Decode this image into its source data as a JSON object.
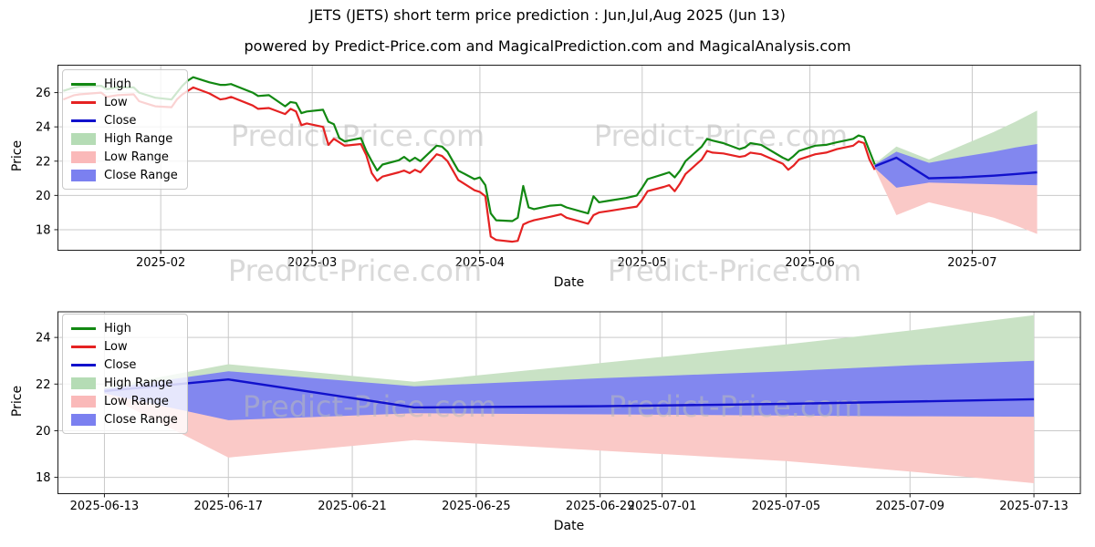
{
  "figure": {
    "title": "JETS (JETS) short term price prediction : Jun,Jul,Aug 2025 (Jun 13)",
    "subtitle": "powered by Predict-Price.com and MagicalPrediction.com and MagicalAnalysis.com",
    "watermark": "Predict-Price.com"
  },
  "axes": {
    "price_label": "Price",
    "date_label": "Date"
  },
  "colors": {
    "high_line": "#128812",
    "low_line": "#e52222",
    "close_line": "#1111cc",
    "high_band": "#c9e2c5",
    "low_band": "#fac9c7",
    "close_band": "#8287ef",
    "grid": "#c9c9c9",
    "spine": "#1c1c1c",
    "tick_text": "#000000"
  },
  "legend": {
    "items": [
      {
        "label": "High",
        "type": "line",
        "swatch_color": "#128812"
      },
      {
        "label": "Low",
        "type": "line",
        "swatch_color": "#e52222"
      },
      {
        "label": "Close",
        "type": "line",
        "swatch_color": "#1111cc"
      },
      {
        "label": "High Range",
        "type": "patch",
        "swatch_color": "#b5dcb5"
      },
      {
        "label": "Low Range",
        "type": "patch",
        "swatch_color": "#fab9b9"
      },
      {
        "label": "Close Range",
        "type": "patch",
        "swatch_color": "#7b80f0"
      }
    ]
  },
  "chart_data": {
    "type": "line",
    "title": "JETS (JETS) short term price prediction : Jun,Jul,Aug 2025 (Jun 13)",
    "history": {
      "dates": [
        "2025-01-14",
        "2025-01-16",
        "2025-01-17",
        "2025-01-21",
        "2025-01-22",
        "2025-01-24",
        "2025-01-27",
        "2025-01-28",
        "2025-01-29",
        "2025-01-31",
        "2025-02-03",
        "2025-02-04",
        "2025-02-05",
        "2025-02-06",
        "2025-02-07",
        "2025-02-10",
        "2025-02-12",
        "2025-02-13",
        "2025-02-14",
        "2025-02-18",
        "2025-02-19",
        "2025-02-21",
        "2025-02-24",
        "2025-02-25",
        "2025-02-26",
        "2025-02-27",
        "2025-02-28",
        "2025-03-03",
        "2025-03-04",
        "2025-03-05",
        "2025-03-06",
        "2025-03-07",
        "2025-03-10",
        "2025-03-11",
        "2025-03-12",
        "2025-03-13",
        "2025-03-14",
        "2025-03-17",
        "2025-03-18",
        "2025-03-19",
        "2025-03-20",
        "2025-03-21",
        "2025-03-24",
        "2025-03-25",
        "2025-03-26",
        "2025-03-27",
        "2025-03-28",
        "2025-03-31",
        "2025-04-01",
        "2025-04-02",
        "2025-04-03",
        "2025-04-04",
        "2025-04-07",
        "2025-04-08",
        "2025-04-09",
        "2025-04-10",
        "2025-04-11",
        "2025-04-14",
        "2025-04-16",
        "2025-04-17",
        "2025-04-21",
        "2025-04-22",
        "2025-04-23",
        "2025-04-25",
        "2025-04-28",
        "2025-04-30",
        "2025-05-01",
        "2025-05-02",
        "2025-05-05",
        "2025-05-06",
        "2025-05-07",
        "2025-05-08",
        "2025-05-09",
        "2025-05-12",
        "2025-05-13",
        "2025-05-14",
        "2025-05-16",
        "2025-05-19",
        "2025-05-20",
        "2025-05-21",
        "2025-05-23",
        "2025-05-27",
        "2025-05-28",
        "2025-05-29",
        "2025-05-30",
        "2025-06-02",
        "2025-06-04",
        "2025-06-06",
        "2025-06-09",
        "2025-06-10",
        "2025-06-11",
        "2025-06-12",
        "2025-06-13"
      ],
      "high": [
        26.1,
        26.3,
        26.35,
        26.4,
        26.2,
        26.3,
        26.3,
        26.0,
        25.9,
        25.7,
        25.6,
        26.0,
        26.4,
        26.7,
        26.9,
        26.6,
        26.45,
        26.45,
        26.5,
        26.0,
        25.8,
        25.85,
        25.2,
        25.45,
        25.4,
        24.8,
        24.9,
        25.0,
        24.3,
        24.15,
        23.35,
        23.15,
        23.35,
        22.6,
        22.0,
        21.45,
        21.8,
        22.05,
        22.25,
        22.0,
        22.2,
        22.0,
        22.9,
        22.85,
        22.55,
        22.0,
        21.45,
        20.95,
        21.05,
        20.6,
        18.95,
        18.55,
        18.5,
        18.7,
        20.55,
        19.3,
        19.2,
        19.4,
        19.45,
        19.3,
        18.95,
        19.95,
        19.6,
        19.7,
        19.85,
        20.0,
        20.45,
        20.95,
        21.25,
        21.35,
        21.05,
        21.45,
        22.0,
        22.85,
        23.3,
        23.2,
        23.05,
        22.7,
        22.8,
        23.05,
        22.95,
        22.2,
        22.05,
        22.3,
        22.6,
        22.9,
        22.95,
        23.1,
        23.3,
        23.5,
        23.4,
        22.6,
        21.8
      ],
      "low": [
        25.6,
        25.85,
        25.9,
        26.0,
        25.75,
        25.85,
        25.9,
        25.5,
        25.4,
        25.2,
        25.15,
        25.6,
        25.9,
        26.1,
        26.3,
        25.95,
        25.6,
        25.65,
        25.75,
        25.25,
        25.05,
        25.1,
        24.75,
        25.05,
        24.9,
        24.1,
        24.2,
        24.0,
        22.95,
        23.3,
        23.1,
        22.9,
        23.0,
        22.35,
        21.3,
        20.85,
        21.1,
        21.35,
        21.45,
        21.3,
        21.5,
        21.35,
        22.4,
        22.3,
        22.0,
        21.45,
        20.9,
        20.3,
        20.2,
        19.95,
        17.6,
        17.4,
        17.3,
        17.35,
        18.3,
        18.45,
        18.55,
        18.75,
        18.9,
        18.7,
        18.35,
        18.85,
        19.0,
        19.1,
        19.25,
        19.35,
        19.75,
        20.25,
        20.5,
        20.6,
        20.25,
        20.7,
        21.25,
        22.1,
        22.6,
        22.5,
        22.45,
        22.25,
        22.3,
        22.5,
        22.4,
        21.85,
        21.5,
        21.75,
        22.1,
        22.4,
        22.5,
        22.7,
        22.9,
        23.15,
        23.05,
        22.1,
        21.5
      ]
    },
    "prediction": {
      "dates": [
        "2025-06-13",
        "2025-06-17",
        "2025-06-23",
        "2025-06-29",
        "2025-07-05",
        "2025-07-09",
        "2025-07-13"
      ],
      "close": [
        21.7,
        22.2,
        21.0,
        21.05,
        21.15,
        21.25,
        21.35
      ],
      "close_upper": [
        21.8,
        22.55,
        21.9,
        22.25,
        22.55,
        22.8,
        23.0
      ],
      "close_lower": [
        21.6,
        20.45,
        20.75,
        20.7,
        20.65,
        20.62,
        20.6
      ],
      "high_upper": [
        21.85,
        22.85,
        22.1,
        22.9,
        23.7,
        24.3,
        24.95
      ],
      "low_lower": [
        21.55,
        18.85,
        19.6,
        19.15,
        18.7,
        18.25,
        17.75
      ]
    },
    "top_chart": {
      "xlabel": "Date",
      "ylabel": "Price",
      "xlim": [
        "2025-01-13",
        "2025-07-21"
      ],
      "ylim": [
        16.8,
        27.6
      ],
      "yticks": [
        18,
        20,
        22,
        24,
        26
      ],
      "xticks": [
        {
          "date": "2025-02-01",
          "label": "2025-02"
        },
        {
          "date": "2025-03-01",
          "label": "2025-03"
        },
        {
          "date": "2025-04-01",
          "label": "2025-04"
        },
        {
          "date": "2025-05-01",
          "label": "2025-05"
        },
        {
          "date": "2025-06-01",
          "label": "2025-06"
        },
        {
          "date": "2025-07-01",
          "label": "2025-07"
        }
      ],
      "grid": true,
      "legend_position": "upper left"
    },
    "bottom_chart": {
      "xlabel": "Date",
      "ylabel": "Price",
      "xlim": [
        "2025-06-11T12:00:00Z",
        "2025-07-14T12:00:00Z"
      ],
      "ylim": [
        17.3,
        25.1
      ],
      "yticks": [
        18,
        20,
        22,
        24
      ],
      "xticks": [
        {
          "date": "2025-06-13",
          "label": "2025-06-13"
        },
        {
          "date": "2025-06-17",
          "label": "2025-06-17"
        },
        {
          "date": "2025-06-21",
          "label": "2025-06-21"
        },
        {
          "date": "2025-06-25",
          "label": "2025-06-25"
        },
        {
          "date": "2025-06-29",
          "label": "2025-06-29"
        },
        {
          "date": "2025-07-01",
          "label": "2025-07-01"
        },
        {
          "date": "2025-07-05",
          "label": "2025-07-05"
        },
        {
          "date": "2025-07-09",
          "label": "2025-07-09"
        },
        {
          "date": "2025-07-13",
          "label": "2025-07-13"
        }
      ],
      "grid": true,
      "legend_position": "upper left"
    }
  }
}
